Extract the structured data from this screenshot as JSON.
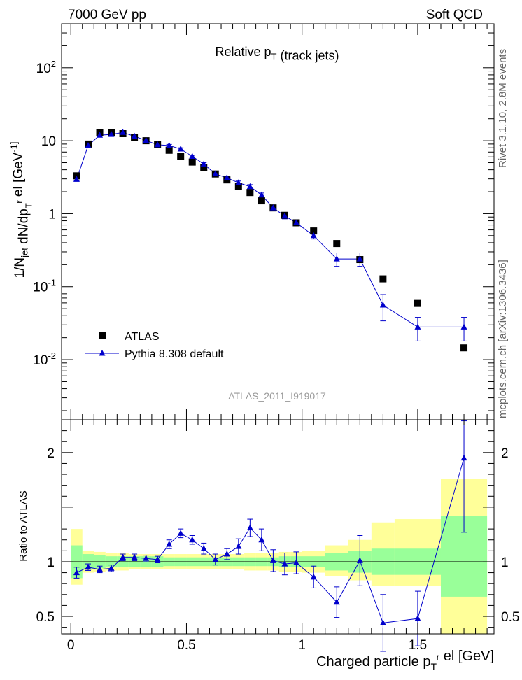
{
  "header": {
    "left": "7000 GeV pp",
    "right": "Soft QCD"
  },
  "side_labels": {
    "rivet": "Rivet 3.1.10, 2.8M events",
    "source": "mcplots.cern.ch [arXiv:1306.3436]"
  },
  "watermark": "ATLAS_2011_I919017",
  "legend_position": "bottom-left",
  "colors": {
    "data": "#000000",
    "mc": "#0000cc",
    "band_inner": "#99ff99",
    "band_outer": "#ffff99"
  },
  "chart_data": [
    {
      "type": "scatter",
      "title": "Relative p_T (track jets)",
      "xlabel": "",
      "ylabel": "1/N_jet dN/dp_T^r el [GeV^-1]",
      "yscale": "log",
      "xlim": [
        -0.04,
        1.83
      ],
      "ylim": [
        0.0015,
        400
      ],
      "ytick_labels": [
        "10^-2",
        "10^-1",
        "1",
        "10",
        "10^2"
      ],
      "grid": false,
      "series": [
        {
          "name": "ATLAS",
          "marker": "square",
          "x": [
            0.025,
            0.075,
            0.125,
            0.175,
            0.225,
            0.275,
            0.325,
            0.375,
            0.425,
            0.475,
            0.525,
            0.575,
            0.625,
            0.675,
            0.725,
            0.775,
            0.825,
            0.875,
            0.925,
            0.975,
            1.05,
            1.15,
            1.25,
            1.35,
            1.5,
            1.7
          ],
          "y": [
            3.3,
            9.0,
            12.8,
            13.0,
            12.5,
            11.0,
            10.0,
            8.8,
            7.4,
            6.1,
            5.1,
            4.3,
            3.5,
            2.9,
            2.35,
            1.95,
            1.5,
            1.2,
            0.95,
            0.75,
            0.58,
            0.39,
            0.235,
            0.128,
            0.059,
            0.0145
          ]
        },
        {
          "name": "Pythia 8.308 default",
          "marker": "triangle",
          "x": [
            0.025,
            0.075,
            0.125,
            0.175,
            0.225,
            0.275,
            0.325,
            0.375,
            0.425,
            0.475,
            0.525,
            0.575,
            0.625,
            0.675,
            0.725,
            0.775,
            0.825,
            0.875,
            0.925,
            0.975,
            1.05,
            1.15,
            1.25,
            1.35,
            1.5,
            1.7
          ],
          "y": [
            2.95,
            8.6,
            11.9,
            12.2,
            13.0,
            11.5,
            10.1,
            8.8,
            8.6,
            7.7,
            6.1,
            4.8,
            3.5,
            3.1,
            2.65,
            2.35,
            1.8,
            1.2,
            0.93,
            0.75,
            0.5,
            0.24,
            0.24,
            0.056,
            0.028,
            0.028
          ],
          "yerr": [
            0.12,
            0.2,
            0.3,
            0.3,
            0.3,
            0.3,
            0.25,
            0.2,
            0.3,
            0.3,
            0.2,
            0.2,
            0.15,
            0.15,
            0.15,
            0.15,
            0.12,
            0.08,
            0.08,
            0.06,
            0.05,
            0.05,
            0.05,
            0.022,
            0.01,
            0.01
          ]
        }
      ]
    },
    {
      "type": "line",
      "xlabel": "Charged particle p_T^r el [GeV]",
      "ylabel": "Ratio to ATLAS",
      "xlim": [
        -0.04,
        1.83
      ],
      "ylim": [
        0.34,
        2.3
      ],
      "xticks": [
        0,
        0.5,
        1,
        1.5
      ],
      "xtick_labels": [
        "0",
        "0.5",
        "1",
        "1.5"
      ],
      "yticks": [
        0.5,
        1,
        2
      ],
      "ytick_labels": [
        "0.5",
        "1",
        "2"
      ],
      "reference_line": 1,
      "uncertainty_bands": {
        "bins": [
          0,
          0.05,
          0.1,
          0.15,
          0.2,
          0.25,
          0.3,
          0.35,
          0.4,
          0.45,
          0.5,
          0.55,
          0.6,
          0.65,
          0.7,
          0.75,
          0.8,
          0.85,
          0.9,
          0.95,
          1.0,
          1.1,
          1.2,
          1.3,
          1.4,
          1.6,
          1.8
        ],
        "inner_low": [
          0.85,
          0.93,
          0.94,
          0.95,
          0.95,
          0.95,
          0.95,
          0.95,
          0.96,
          0.96,
          0.96,
          0.96,
          0.96,
          0.96,
          0.96,
          0.96,
          0.96,
          0.96,
          0.95,
          0.95,
          0.95,
          0.92,
          0.9,
          0.88,
          0.88,
          0.68
        ],
        "inner_high": [
          1.15,
          1.07,
          1.06,
          1.05,
          1.05,
          1.05,
          1.05,
          1.05,
          1.04,
          1.04,
          1.04,
          1.04,
          1.04,
          1.04,
          1.04,
          1.04,
          1.04,
          1.04,
          1.05,
          1.05,
          1.05,
          1.08,
          1.1,
          1.12,
          1.12,
          1.42
        ],
        "outer_low": [
          0.79,
          0.9,
          0.91,
          0.92,
          0.92,
          0.93,
          0.93,
          0.93,
          0.93,
          0.93,
          0.93,
          0.93,
          0.93,
          0.93,
          0.93,
          0.92,
          0.92,
          0.92,
          0.91,
          0.91,
          0.9,
          0.87,
          0.83,
          0.78,
          0.78,
          0.0
        ],
        "outer_high": [
          1.3,
          1.1,
          1.09,
          1.08,
          1.08,
          1.07,
          1.07,
          1.07,
          1.07,
          1.07,
          1.07,
          1.07,
          1.07,
          1.07,
          1.07,
          1.08,
          1.08,
          1.08,
          1.09,
          1.09,
          1.1,
          1.15,
          1.2,
          1.36,
          1.39,
          1.76
        ]
      },
      "series": [
        {
          "name": "Pythia 8.308 default",
          "x": [
            0.025,
            0.075,
            0.125,
            0.175,
            0.225,
            0.275,
            0.325,
            0.375,
            0.425,
            0.475,
            0.525,
            0.575,
            0.625,
            0.675,
            0.725,
            0.775,
            0.825,
            0.875,
            0.925,
            0.975,
            1.05,
            1.15,
            1.25,
            1.35,
            1.5,
            1.7
          ],
          "y": [
            0.9,
            0.95,
            0.93,
            0.94,
            1.04,
            1.04,
            1.03,
            1.02,
            1.16,
            1.26,
            1.2,
            1.12,
            1.02,
            1.07,
            1.14,
            1.31,
            1.2,
            1.01,
            0.98,
            0.99,
            0.86,
            0.63,
            1.01,
            0.44,
            0.48,
            1.95
          ],
          "yerr": [
            0.05,
            0.03,
            0.03,
            0.03,
            0.03,
            0.03,
            0.03,
            0.03,
            0.04,
            0.04,
            0.04,
            0.05,
            0.05,
            0.05,
            0.07,
            0.08,
            0.1,
            0.1,
            0.1,
            0.1,
            0.1,
            0.14,
            0.23,
            0.26,
            0.25,
            0.68
          ]
        }
      ]
    }
  ]
}
